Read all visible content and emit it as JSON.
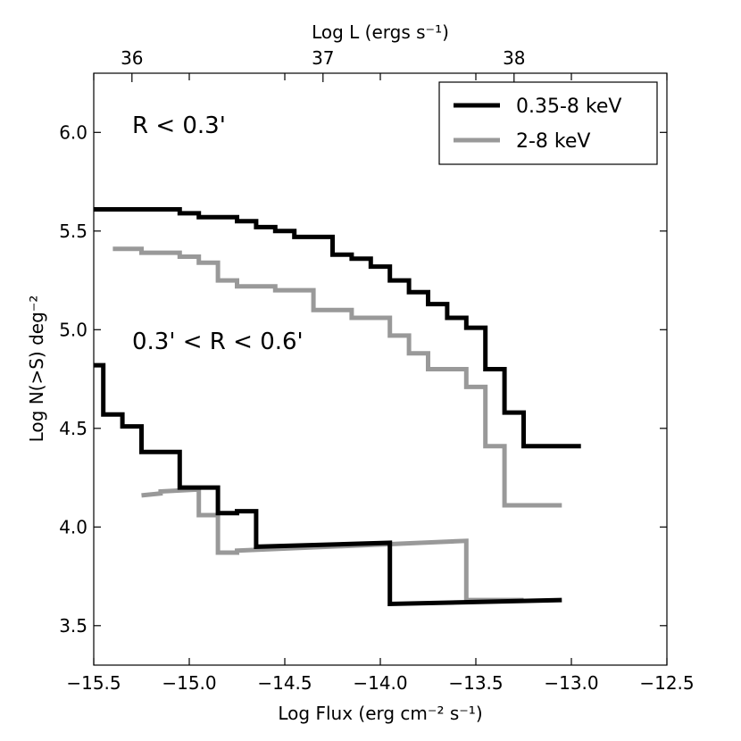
{
  "chart_data": {
    "type": "line",
    "xlabel": "Log Flux (erg cm⁻² s⁻¹)",
    "ylabel": "Log N(>S) deg⁻²",
    "top_xlabel": "Log L (ergs s⁻¹)",
    "xlim": [
      -15.5,
      -12.5
    ],
    "ylim": [
      3.3,
      6.3
    ],
    "xticks": [
      -15.5,
      -15.0,
      -14.5,
      -14.0,
      -13.5,
      -13.0,
      -12.5
    ],
    "xtick_labels": [
      "−15.5",
      "−15.0",
      "−14.5",
      "−14.0",
      "−13.5",
      "−13.0",
      "−12.5"
    ],
    "yticks": [
      3.5,
      4.0,
      4.5,
      5.0,
      5.5,
      6.0
    ],
    "ytick_labels": [
      "3.5",
      "4.0",
      "4.5",
      "5.0",
      "5.5",
      "6.0"
    ],
    "top_xticks": [
      -15.3,
      -14.3,
      -13.3
    ],
    "top_xtick_labels": [
      "36",
      "37",
      "38"
    ],
    "legend": {
      "position": "top-right",
      "entries": [
        {
          "label": "0.35-8 keV",
          "color": "#000000"
        },
        {
          "label": "2-8 keV",
          "color": "#999999"
        }
      ]
    },
    "annotations": [
      {
        "text": "R < 0.3'",
        "x": -15.3,
        "y": 6.0
      },
      {
        "text": "0.3' < R < 0.6'",
        "x": -15.3,
        "y": 4.95
      }
    ],
    "series": [
      {
        "name": "0.35-8 keV, R < 0.3'",
        "color": "#000000",
        "steps": [
          [
            -15.5,
            5.61
          ],
          [
            -15.05,
            5.61
          ],
          [
            -15.05,
            5.59
          ],
          [
            -14.95,
            5.59
          ],
          [
            -14.95,
            5.57
          ],
          [
            -14.75,
            5.57
          ],
          [
            -14.75,
            5.55
          ],
          [
            -14.65,
            5.55
          ],
          [
            -14.65,
            5.52
          ],
          [
            -14.55,
            5.52
          ],
          [
            -14.55,
            5.5
          ],
          [
            -14.45,
            5.5
          ],
          [
            -14.45,
            5.47
          ],
          [
            -14.25,
            5.47
          ],
          [
            -14.25,
            5.38
          ],
          [
            -14.15,
            5.38
          ],
          [
            -14.15,
            5.36
          ],
          [
            -14.05,
            5.36
          ],
          [
            -14.05,
            5.32
          ],
          [
            -13.95,
            5.32
          ],
          [
            -13.95,
            5.25
          ],
          [
            -13.85,
            5.25
          ],
          [
            -13.85,
            5.19
          ],
          [
            -13.75,
            5.19
          ],
          [
            -13.75,
            5.13
          ],
          [
            -13.65,
            5.13
          ],
          [
            -13.65,
            5.06
          ],
          [
            -13.55,
            5.06
          ],
          [
            -13.55,
            5.01
          ],
          [
            -13.45,
            5.01
          ],
          [
            -13.45,
            4.8
          ],
          [
            -13.35,
            4.8
          ],
          [
            -13.35,
            4.58
          ],
          [
            -13.25,
            4.58
          ],
          [
            -13.25,
            4.41
          ],
          [
            -12.95,
            4.41
          ]
        ]
      },
      {
        "name": "2-8 keV, R < 0.3'",
        "color": "#999999",
        "steps": [
          [
            -15.4,
            5.41
          ],
          [
            -15.25,
            5.41
          ],
          [
            -15.25,
            5.39
          ],
          [
            -15.05,
            5.39
          ],
          [
            -15.05,
            5.37
          ],
          [
            -14.95,
            5.37
          ],
          [
            -14.95,
            5.34
          ],
          [
            -14.85,
            5.34
          ],
          [
            -14.85,
            5.25
          ],
          [
            -14.75,
            5.25
          ],
          [
            -14.75,
            5.22
          ],
          [
            -14.55,
            5.22
          ],
          [
            -14.55,
            5.2
          ],
          [
            -14.35,
            5.2
          ],
          [
            -14.35,
            5.1
          ],
          [
            -14.15,
            5.1
          ],
          [
            -14.15,
            5.06
          ],
          [
            -13.95,
            5.06
          ],
          [
            -13.95,
            4.97
          ],
          [
            -13.85,
            4.97
          ],
          [
            -13.85,
            4.88
          ],
          [
            -13.75,
            4.88
          ],
          [
            -13.75,
            4.8
          ],
          [
            -13.55,
            4.8
          ],
          [
            -13.55,
            4.71
          ],
          [
            -13.45,
            4.71
          ],
          [
            -13.45,
            4.41
          ],
          [
            -13.35,
            4.41
          ],
          [
            -13.35,
            4.11
          ],
          [
            -13.05,
            4.11
          ]
        ]
      },
      {
        "name": "0.35-8 keV, 0.3' < R < 0.6'",
        "color": "#000000",
        "steps": [
          [
            -15.5,
            4.82
          ],
          [
            -15.45,
            4.82
          ],
          [
            -15.45,
            4.57
          ],
          [
            -15.35,
            4.57
          ],
          [
            -15.35,
            4.51
          ],
          [
            -15.25,
            4.51
          ],
          [
            -15.25,
            4.38
          ],
          [
            -15.15,
            4.38
          ],
          [
            -15.15,
            4.38
          ],
          [
            -15.05,
            4.38
          ],
          [
            -15.05,
            4.2
          ],
          [
            -14.95,
            4.2
          ],
          [
            -14.95,
            4.2
          ],
          [
            -14.85,
            4.2
          ],
          [
            -14.85,
            4.07
          ],
          [
            -14.75,
            4.07
          ],
          [
            -14.75,
            4.08
          ],
          [
            -14.65,
            4.08
          ],
          [
            -14.65,
            3.9
          ],
          [
            -13.95,
            3.92
          ],
          [
            -13.95,
            3.61
          ],
          [
            -13.05,
            3.63
          ]
        ]
      },
      {
        "name": "2-8 keV, 0.3' < R < 0.6'",
        "color": "#999999",
        "steps": [
          [
            -15.25,
            4.16
          ],
          [
            -15.15,
            4.17
          ],
          [
            -15.15,
            4.18
          ],
          [
            -14.95,
            4.19
          ],
          [
            -14.95,
            4.06
          ],
          [
            -14.85,
            4.06
          ],
          [
            -14.85,
            3.87
          ],
          [
            -14.75,
            3.87
          ],
          [
            -14.75,
            3.88
          ],
          [
            -13.55,
            3.93
          ],
          [
            -13.55,
            3.63
          ],
          [
            -13.25,
            3.63
          ]
        ]
      }
    ]
  }
}
